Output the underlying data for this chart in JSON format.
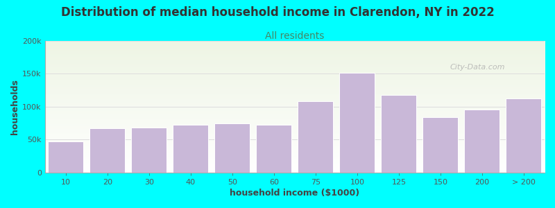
{
  "title": "Distribution of median household income in Clarendon, NY in 2022",
  "subtitle": "All residents",
  "xlabel": "household income ($1000)",
  "ylabel": "households",
  "background_color": "#00FFFF",
  "plot_bg_top": "#eef5e4",
  "plot_bg_bottom": "#ffffff",
  "bar_color": "#c9b8d8",
  "bar_edge_color": "#ffffff",
  "watermark": "City-Data.com",
  "xtick_labels": [
    "10",
    "20",
    "30",
    "40",
    "50",
    "60",
    "75",
    "100",
    "125",
    "150",
    "200",
    "> 200"
  ],
  "values": [
    47000,
    67000,
    68000,
    73000,
    75000,
    73000,
    108000,
    152000,
    118000,
    84000,
    96000,
    113000
  ],
  "ylim": [
    0,
    200000
  ],
  "yticks": [
    0,
    50000,
    100000,
    150000,
    200000
  ],
  "ytick_labels": [
    "0",
    "50k",
    "100k",
    "150k",
    "200k"
  ],
  "title_fontsize": 12,
  "subtitle_fontsize": 10,
  "axis_label_fontsize": 9,
  "tick_fontsize": 8,
  "title_color": "#333333",
  "subtitle_color": "#448866",
  "axis_label_color": "#444444",
  "tick_color": "#555555",
  "grid_color": "#dddddd",
  "watermark_color": "#aaaaaa"
}
